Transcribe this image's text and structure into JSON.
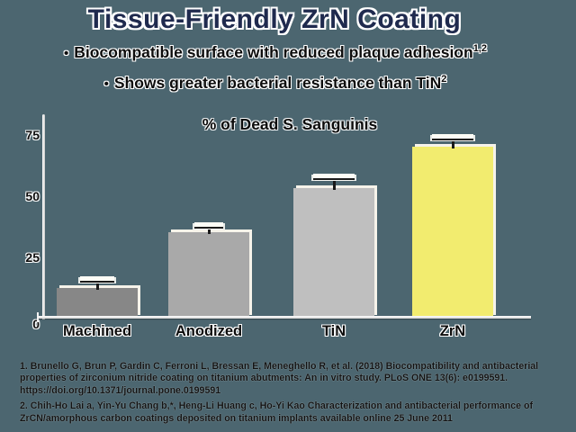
{
  "slide": {
    "title": "Tissue-Friendly ZrN Coating",
    "bullet_char": "•",
    "bullets": [
      {
        "text": "Biocompatible surface with reduced plaque adhesion",
        "sup": "1,2"
      },
      {
        "text": "Shows greater bacterial resistance than TiN",
        "sup": "2"
      }
    ]
  },
  "chart_data": {
    "type": "bar",
    "title": "% of Dead S. Sanguinis",
    "categories": [
      "Machined",
      "Anodized",
      "TiN",
      "ZrN"
    ],
    "values": [
      12,
      35,
      53,
      70
    ],
    "errors": [
      3,
      2,
      4,
      3
    ],
    "bar_colors": [
      "#878787",
      "#a9a9a9",
      "#bfbfbf",
      "#f2ec6f"
    ],
    "yticks": [
      0,
      25,
      50,
      75
    ],
    "ylim": [
      0,
      82
    ],
    "xlabel": "",
    "ylabel": "",
    "grid": false,
    "legend": false,
    "error_bars": true,
    "highlight_category": "ZrN"
  },
  "references": [
    {
      "lines": [
        "1. Brunello G, Brun P, Gardin C, Ferroni L, Bressan E, Meneghello R, et al. (2018) Biocompatibility and antibacterial",
        "properties of zirconium nitride coating on titanium abutments: An in vitro study. PLoS ONE 13(6): e0199591.",
        "https://doi.org/10.1371/journal.pone.0199591"
      ]
    },
    {
      "lines": [
        "2. Chih-Ho Lai a, Yin-Yu Chang b,*, Heng-Li Huang c, Ho-Yi Kao Characterization and antibacterial performance of",
        "ZrCN/amorphous carbon coatings deposited on titanium implants available online 25 June 2011"
      ]
    }
  ],
  "colors": {
    "background": "#4c6670",
    "title_text": "#1f2a4e",
    "body_text": "#0d0d0d",
    "axis": "#eeeeee",
    "highlight_bar": "#f2ec6f",
    "gray_bars": [
      "#878787",
      "#a9a9a9",
      "#bfbfbf"
    ]
  }
}
